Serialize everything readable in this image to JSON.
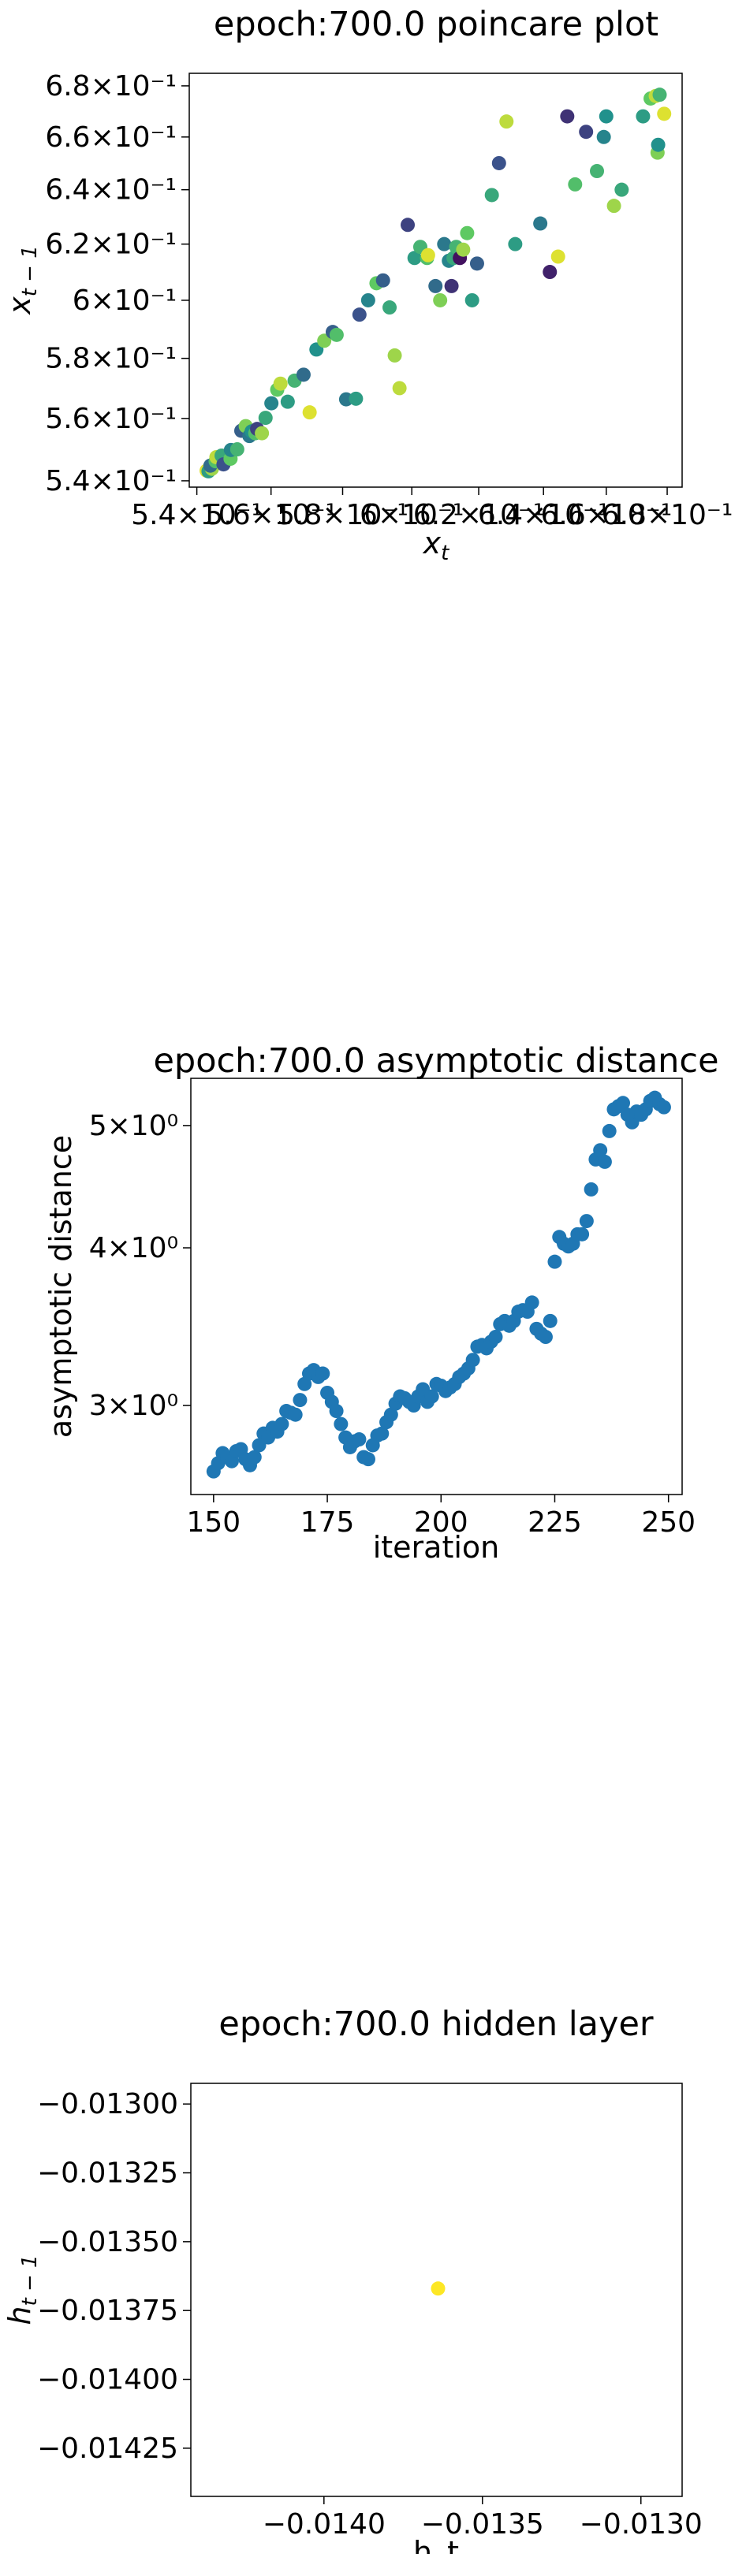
{
  "chart_data": [
    {
      "type": "scatter",
      "title": "epoch:700.0 poincare plot",
      "xlabel": "x_t",
      "ylabel": "x_{t-1}",
      "xscale": "log",
      "yscale": "log",
      "xlim": [
        0.538,
        0.685
      ],
      "ylim": [
        0.538,
        0.685
      ],
      "xticks": [
        {
          "v": 0.54,
          "label": "5.4×10⁻¹"
        },
        {
          "v": 0.56,
          "label": "5.6×10⁻¹"
        },
        {
          "v": 0.58,
          "label": "5.8×10⁻¹"
        },
        {
          "v": 0.6,
          "label": "6×10⁻¹"
        },
        {
          "v": 0.62,
          "label": "6.2×10⁻¹"
        },
        {
          "v": 0.64,
          "label": "6.4×10⁻¹"
        },
        {
          "v": 0.66,
          "label": "6.6×10⁻¹"
        },
        {
          "v": 0.68,
          "label": "6.8×10⁻¹"
        }
      ],
      "yticks": [
        {
          "v": 0.54,
          "label": "5.4×10⁻¹"
        },
        {
          "v": 0.56,
          "label": "5.6×10⁻¹"
        },
        {
          "v": 0.58,
          "label": "5.8×10⁻¹"
        },
        {
          "v": 0.6,
          "label": "6×10⁻¹"
        },
        {
          "v": 0.62,
          "label": "6.2×10⁻¹"
        },
        {
          "v": 0.64,
          "label": "6.4×10⁻¹"
        },
        {
          "v": 0.66,
          "label": "6.6×10⁻¹"
        },
        {
          "v": 0.68,
          "label": "6.8×10⁻¹"
        }
      ],
      "colormap": [
        "#440154",
        "#3b528b",
        "#21918c",
        "#5ec962",
        "#fde725"
      ],
      "grid": false,
      "points": [
        [
          0.5426,
          0.5432,
          0.95
        ],
        [
          0.5431,
          0.543,
          0.55
        ],
        [
          0.544,
          0.5438,
          0.85
        ],
        [
          0.5436,
          0.5448,
          0.35
        ],
        [
          0.545,
          0.5462,
          0.7
        ],
        [
          0.5452,
          0.5475,
          0.9
        ],
        [
          0.5466,
          0.548,
          0.6
        ],
        [
          0.5471,
          0.5452,
          0.25
        ],
        [
          0.549,
          0.547,
          0.75
        ],
        [
          0.5491,
          0.5498,
          0.45
        ],
        [
          0.5508,
          0.55,
          0.65
        ],
        [
          0.5519,
          0.556,
          0.3
        ],
        [
          0.5531,
          0.5575,
          0.8
        ],
        [
          0.5541,
          0.5543,
          0.4
        ],
        [
          0.5547,
          0.5558,
          0.5
        ],
        [
          0.5557,
          0.5552,
          0.7
        ],
        [
          0.5562,
          0.5566,
          0.2
        ],
        [
          0.5575,
          0.5552,
          0.85
        ],
        [
          0.5585,
          0.5602,
          0.6
        ],
        [
          0.5601,
          0.565,
          0.45
        ],
        [
          0.5617,
          0.5695,
          0.75
        ],
        [
          0.5626,
          0.5715,
          0.9
        ],
        [
          0.5646,
          0.5655,
          0.55
        ],
        [
          0.5665,
          0.5725,
          0.65
        ],
        [
          0.569,
          0.5745,
          0.35
        ],
        [
          0.5707,
          0.562,
          0.95
        ],
        [
          0.5726,
          0.583,
          0.5
        ],
        [
          0.5748,
          0.586,
          0.8
        ],
        [
          0.5772,
          0.589,
          0.3
        ],
        [
          0.5783,
          0.588,
          0.7
        ],
        [
          0.581,
          0.5663,
          0.4
        ],
        [
          0.5838,
          0.5665,
          0.55
        ],
        [
          0.5848,
          0.595,
          0.25
        ],
        [
          0.5873,
          0.6,
          0.45
        ],
        [
          0.5897,
          0.606,
          0.75
        ],
        [
          0.5916,
          0.607,
          0.3
        ],
        [
          0.5935,
          0.5975,
          0.6
        ],
        [
          0.595,
          0.581,
          0.85
        ],
        [
          0.5964,
          0.57,
          0.9
        ],
        [
          0.5988,
          0.627,
          0.2
        ],
        [
          0.6008,
          0.615,
          0.55
        ],
        [
          0.6025,
          0.619,
          0.65
        ],
        [
          0.6045,
          0.615,
          0.7
        ],
        [
          0.6048,
          0.616,
          0.95
        ],
        [
          0.607,
          0.605,
          0.35
        ],
        [
          0.6084,
          0.6,
          0.8
        ],
        [
          0.6096,
          0.62,
          0.4
        ],
        [
          0.611,
          0.614,
          0.45
        ],
        [
          0.6118,
          0.605,
          0.15
        ],
        [
          0.6124,
          0.615,
          0.6
        ],
        [
          0.6132,
          0.619,
          0.65
        ],
        [
          0.6143,
          0.615,
          0.05
        ],
        [
          0.6153,
          0.618,
          0.85
        ],
        [
          0.6165,
          0.624,
          0.75
        ],
        [
          0.618,
          0.6,
          0.55
        ],
        [
          0.6195,
          0.613,
          0.3
        ],
        [
          0.624,
          0.638,
          0.6
        ],
        [
          0.6262,
          0.65,
          0.25
        ],
        [
          0.6285,
          0.666,
          0.9
        ],
        [
          0.6312,
          0.62,
          0.55
        ],
        [
          0.639,
          0.6275,
          0.4
        ],
        [
          0.642,
          0.61,
          0.1
        ],
        [
          0.6446,
          0.6155,
          0.95
        ],
        [
          0.6475,
          0.668,
          0.15
        ],
        [
          0.65,
          0.642,
          0.7
        ],
        [
          0.6535,
          0.662,
          0.2
        ],
        [
          0.657,
          0.647,
          0.65
        ],
        [
          0.6592,
          0.66,
          0.45
        ],
        [
          0.66,
          0.668,
          0.5
        ],
        [
          0.6625,
          0.634,
          0.85
        ],
        [
          0.665,
          0.64,
          0.6
        ],
        [
          0.672,
          0.668,
          0.55
        ],
        [
          0.6745,
          0.675,
          0.75
        ],
        [
          0.6762,
          0.676,
          0.9
        ],
        [
          0.6768,
          0.654,
          0.8
        ],
        [
          0.677,
          0.657,
          0.5
        ],
        [
          0.6775,
          0.6765,
          0.65
        ],
        [
          0.679,
          0.669,
          0.95
        ]
      ]
    },
    {
      "type": "scatter",
      "title": "epoch:700.0 asymptotic distance",
      "xlabel": "iteration",
      "ylabel": "asymptotic distance",
      "yscale": "log",
      "xlim": [
        145,
        253
      ],
      "ylim": [
        2.55,
        5.45
      ],
      "xticks": [
        {
          "v": 150,
          "label": "150"
        },
        {
          "v": 175,
          "label": "175"
        },
        {
          "v": 200,
          "label": "200"
        },
        {
          "v": 225,
          "label": "225"
        },
        {
          "v": 250,
          "label": "250"
        }
      ],
      "yticks": [
        {
          "v": 3,
          "label": "3×10⁰"
        },
        {
          "v": 4,
          "label": "4×10⁰"
        },
        {
          "v": 5,
          "label": "5×10⁰"
        }
      ],
      "color": "#1f77b4",
      "grid": false,
      "x_start": 150,
      "y": [
        2.66,
        2.7,
        2.75,
        2.73,
        2.71,
        2.76,
        2.77,
        2.72,
        2.69,
        2.73,
        2.79,
        2.85,
        2.83,
        2.88,
        2.86,
        2.9,
        2.97,
        2.96,
        2.95,
        3.03,
        3.12,
        3.18,
        3.2,
        3.16,
        3.18,
        3.07,
        3.02,
        2.97,
        2.9,
        2.83,
        2.78,
        2.81,
        2.82,
        2.73,
        2.72,
        2.79,
        2.84,
        2.85,
        2.91,
        2.95,
        3.01,
        3.05,
        3.04,
        3.02,
        3.0,
        3.05,
        3.09,
        3.02,
        3.05,
        3.12,
        3.11,
        3.08,
        3.1,
        3.12,
        3.16,
        3.18,
        3.21,
        3.26,
        3.34,
        3.35,
        3.33,
        3.37,
        3.4,
        3.48,
        3.5,
        3.47,
        3.5,
        3.56,
        3.57,
        3.56,
        3.62,
        3.45,
        3.42,
        3.4,
        3.5,
        3.9,
        4.08,
        4.03,
        4.01,
        4.03,
        4.1,
        4.1,
        4.2,
        4.45,
        4.7,
        4.78,
        4.68,
        4.95,
        5.15,
        5.18,
        5.21,
        5.1,
        5.03,
        5.13,
        5.1,
        5.15,
        5.23,
        5.26,
        5.2,
        5.17
      ]
    },
    {
      "type": "scatter",
      "title": "epoch:700.0 hidden layer",
      "xlabel": "h_t",
      "ylabel": "h_{t-1}",
      "xlim": [
        -0.01442,
        -0.01287
      ],
      "ylim": [
        -0.014425,
        -0.012925
      ],
      "xticks": [
        {
          "v": -0.014,
          "label": "−0.0140"
        },
        {
          "v": -0.0135,
          "label": "−0.0135"
        },
        {
          "v": -0.013,
          "label": "−0.0130"
        }
      ],
      "yticks": [
        {
          "v": -0.013,
          "label": "−0.01300"
        },
        {
          "v": -0.01325,
          "label": "−0.01325"
        },
        {
          "v": -0.0135,
          "label": "−0.01350"
        },
        {
          "v": -0.01375,
          "label": "−0.01375"
        },
        {
          "v": -0.014,
          "label": "−0.01400"
        },
        {
          "v": -0.01425,
          "label": "−0.01425"
        }
      ],
      "color": "#fde725",
      "grid": false,
      "points": [
        [
          -0.01364,
          -0.01367
        ]
      ]
    }
  ]
}
